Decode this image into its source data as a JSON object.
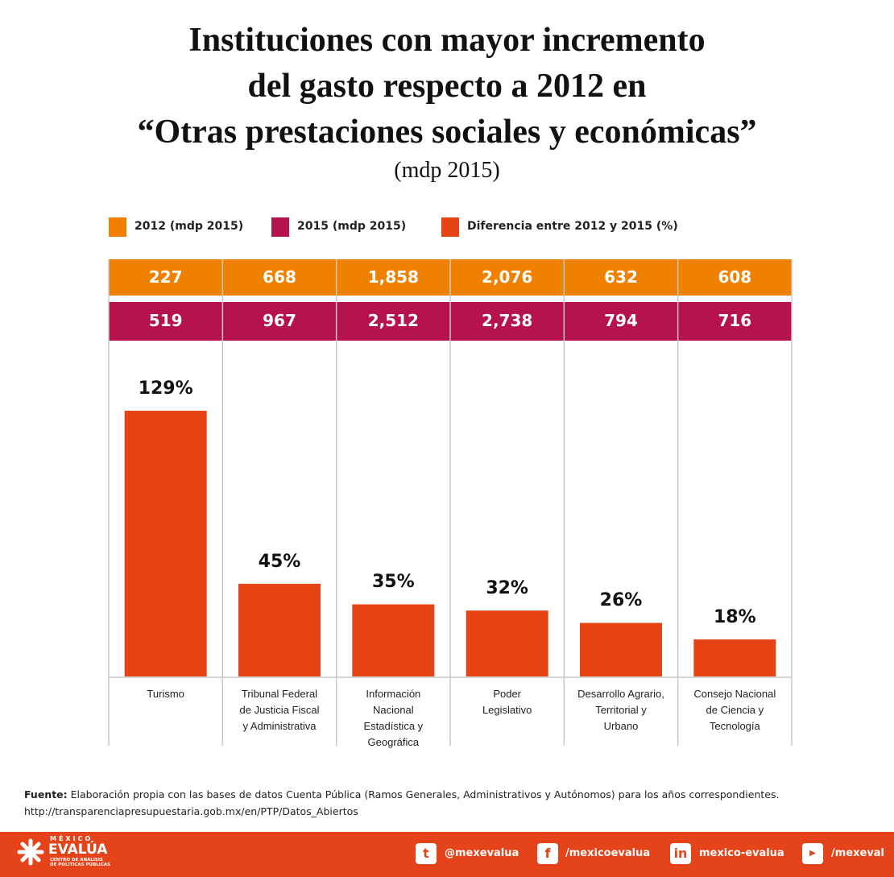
{
  "chart_data": {
    "type": "bar",
    "title": "Instituciones con mayor incremento\ndel gasto respecto a 2012 en\n“Otras prestaciones sociales y económicas”",
    "subtitle": "(mdp 2015)",
    "categories": [
      "Turismo",
      "Tribunal Federal\nde Justicia Fiscal\ny Administrativa",
      "Información\nNacional\nEstadística y\nGeográfica",
      "Poder\nLegislativo",
      "Desarrollo Agrario,\nTerritorial y\nUrbano",
      "Consejo Nacional\nde Ciencia y\nTecnología"
    ],
    "series": [
      {
        "name": "2012 (mdp 2015)",
        "color": "#f08000",
        "values": [
          227,
          668,
          1858,
          2076,
          632,
          608
        ],
        "value_labels": [
          "227",
          "668",
          "1,858",
          "2,076",
          "632",
          "608"
        ]
      },
      {
        "name": "2015 (mdp 2015)",
        "color": "#b5124e",
        "values": [
          519,
          967,
          2512,
          2738,
          794,
          716
        ],
        "value_labels": [
          "519",
          "967",
          "2,512",
          "2,738",
          "794",
          "716"
        ]
      },
      {
        "name": "Diferencia entre 2012 y 2015 (%)",
        "color": "#e64415",
        "values": [
          129,
          45,
          35,
          32,
          26,
          18
        ],
        "value_labels": [
          "129%",
          "45%",
          "35%",
          "32%",
          "26%",
          "18%"
        ]
      }
    ]
  },
  "source": {
    "label": "Fuente:",
    "text": "Elaboración propia con las bases de datos Cuenta Pública (Ramos Generales, Administrativos y Autónomos) para los años correspondientes.",
    "url": "http://transparenciapresupuestaria.gob.mx/en/PTP/Datos_Abiertos"
  },
  "footer": {
    "logo_top": "MÉXICO",
    "logo_name": "EVALÚA",
    "logo_sub": "CENTRO DE ANÁLISIS\nDE POLÍTICAS PÚBLICAS",
    "twitter": "@mexevalua",
    "facebook": "/mexicoevalua",
    "linkedin": "mexico-evalua",
    "youtube": "/mexeval"
  }
}
